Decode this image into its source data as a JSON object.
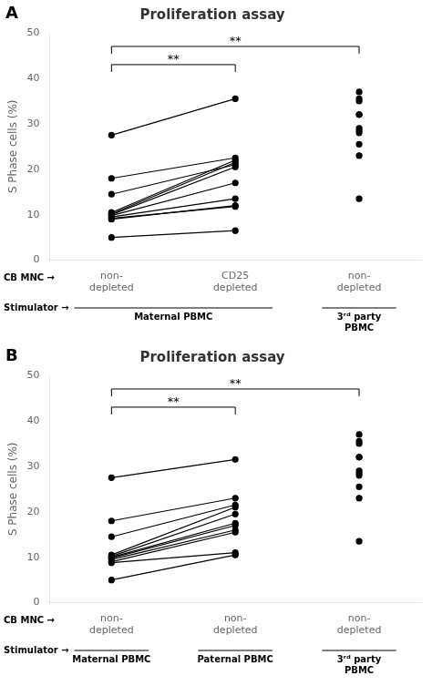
{
  "chart_data": [
    {
      "type": "line",
      "title": "Proliferation assay",
      "panel_label": "A",
      "ylabel": "S Phase cells (%)",
      "categories": [
        "non-\ndepleted",
        "CD25\ndepleted",
        "non-\ndepleted"
      ],
      "color": "#000000",
      "series": [
        {
          "type": "line",
          "marker": "circle",
          "values": [
            27.5,
            35.5,
            null
          ]
        },
        {
          "type": "line",
          "marker": "circle",
          "values": [
            18.0,
            22.5,
            null
          ]
        },
        {
          "type": "line",
          "marker": "circle",
          "values": [
            14.5,
            21.0,
            null
          ]
        },
        {
          "type": "line",
          "marker": "circle",
          "values": [
            10.5,
            22.0,
            null
          ]
        },
        {
          "type": "line",
          "marker": "circle",
          "values": [
            10.2,
            21.5,
            null
          ]
        },
        {
          "type": "line",
          "marker": "circle",
          "values": [
            10.0,
            20.5,
            null
          ]
        },
        {
          "type": "line",
          "marker": "circle",
          "values": [
            9.8,
            17.0,
            null
          ]
        },
        {
          "type": "line",
          "marker": "circle",
          "values": [
            9.5,
            13.5,
            null
          ]
        },
        {
          "type": "line",
          "marker": "circle",
          "values": [
            9.2,
            11.8,
            null
          ]
        },
        {
          "type": "line",
          "marker": "circle",
          "values": [
            9.0,
            12.0,
            null
          ]
        },
        {
          "type": "line",
          "marker": "circle",
          "values": [
            5.0,
            6.5,
            null
          ]
        },
        {
          "type": "scatter",
          "marker": "circle",
          "values": [
            null,
            null,
            37.0
          ]
        },
        {
          "type": "scatter",
          "marker": "circle",
          "values": [
            null,
            null,
            35.5
          ]
        },
        {
          "type": "scatter",
          "marker": "circle",
          "values": [
            null,
            null,
            35.0
          ]
        },
        {
          "type": "scatter",
          "marker": "circle",
          "values": [
            null,
            null,
            32.0
          ]
        },
        {
          "type": "scatter",
          "marker": "circle",
          "values": [
            null,
            null,
            32.0
          ]
        },
        {
          "type": "scatter",
          "marker": "circle",
          "values": [
            null,
            null,
            29.0
          ]
        },
        {
          "type": "scatter",
          "marker": "circle",
          "values": [
            null,
            null,
            28.5
          ]
        },
        {
          "type": "scatter",
          "marker": "circle",
          "values": [
            null,
            null,
            28.0
          ]
        },
        {
          "type": "scatter",
          "marker": "circle",
          "values": [
            null,
            null,
            25.5
          ]
        },
        {
          "type": "scatter",
          "marker": "circle",
          "values": [
            null,
            null,
            23.0
          ]
        },
        {
          "type": "scatter",
          "marker": "circle",
          "values": [
            null,
            null,
            13.5
          ]
        }
      ],
      "ylim": [
        0,
        50
      ],
      "yticks": [
        0,
        10,
        20,
        30,
        40,
        50
      ],
      "grid": false,
      "annotations": [
        {
          "text": "**",
          "y": 43,
          "span": [
            0,
            1
          ]
        },
        {
          "text": "**",
          "y": 47,
          "span": [
            0,
            2
          ]
        }
      ],
      "row_labels": [
        "CB MNC →",
        "Stimulator →"
      ],
      "stimulators": [
        {
          "label": "Maternal PBMC",
          "span": [
            0,
            1
          ]
        },
        {
          "label": "3ʳᵈ party\nPBMC",
          "span": [
            2,
            2
          ]
        }
      ]
    },
    {
      "type": "line",
      "title": "Proliferation assay",
      "panel_label": "B",
      "ylabel": "S Phase cells (%)",
      "categories": [
        "non-\ndepleted",
        "non-\ndepleted",
        "non-\ndepleted"
      ],
      "color": "#000000",
      "series": [
        {
          "type": "line",
          "marker": "circle",
          "values": [
            27.5,
            31.5,
            null
          ]
        },
        {
          "type": "line",
          "marker": "circle",
          "values": [
            18.0,
            23.0,
            null
          ]
        },
        {
          "type": "line",
          "marker": "circle",
          "values": [
            14.5,
            21.5,
            null
          ]
        },
        {
          "type": "line",
          "marker": "circle",
          "values": [
            10.5,
            21.0,
            null
          ]
        },
        {
          "type": "line",
          "marker": "circle",
          "values": [
            10.2,
            19.5,
            null
          ]
        },
        {
          "type": "line",
          "marker": "circle",
          "values": [
            10.0,
            17.5,
            null
          ]
        },
        {
          "type": "line",
          "marker": "circle",
          "values": [
            9.8,
            17.0,
            null
          ]
        },
        {
          "type": "line",
          "marker": "circle",
          "values": [
            9.5,
            16.0,
            null
          ]
        },
        {
          "type": "line",
          "marker": "circle",
          "values": [
            9.0,
            15.5,
            null
          ]
        },
        {
          "type": "line",
          "marker": "circle",
          "values": [
            8.8,
            11.0,
            null
          ]
        },
        {
          "type": "line",
          "marker": "circle",
          "values": [
            5.0,
            10.5,
            null
          ]
        },
        {
          "type": "scatter",
          "marker": "circle",
          "values": [
            null,
            null,
            37.0
          ]
        },
        {
          "type": "scatter",
          "marker": "circle",
          "values": [
            null,
            null,
            35.5
          ]
        },
        {
          "type": "scatter",
          "marker": "circle",
          "values": [
            null,
            null,
            35.0
          ]
        },
        {
          "type": "scatter",
          "marker": "circle",
          "values": [
            null,
            null,
            32.0
          ]
        },
        {
          "type": "scatter",
          "marker": "circle",
          "values": [
            null,
            null,
            32.0
          ]
        },
        {
          "type": "scatter",
          "marker": "circle",
          "values": [
            null,
            null,
            29.0
          ]
        },
        {
          "type": "scatter",
          "marker": "circle",
          "values": [
            null,
            null,
            28.5
          ]
        },
        {
          "type": "scatter",
          "marker": "circle",
          "values": [
            null,
            null,
            28.0
          ]
        },
        {
          "type": "scatter",
          "marker": "circle",
          "values": [
            null,
            null,
            25.5
          ]
        },
        {
          "type": "scatter",
          "marker": "circle",
          "values": [
            null,
            null,
            23.0
          ]
        },
        {
          "type": "scatter",
          "marker": "circle",
          "values": [
            null,
            null,
            13.5
          ]
        }
      ],
      "ylim": [
        0,
        50
      ],
      "yticks": [
        0,
        10,
        20,
        30,
        40,
        50
      ],
      "grid": false,
      "annotations": [
        {
          "text": "**",
          "y": 43,
          "span": [
            0,
            1
          ]
        },
        {
          "text": "**",
          "y": 47,
          "span": [
            0,
            2
          ]
        }
      ],
      "row_labels": [
        "CB MNC →",
        "Stimulator →"
      ],
      "stimulators": [
        {
          "label": "Maternal PBMC",
          "span": [
            0,
            0
          ]
        },
        {
          "label": "Paternal PBMC",
          "span": [
            1,
            1
          ]
        },
        {
          "label": "3ʳᵈ party\nPBMC",
          "span": [
            2,
            2
          ]
        }
      ]
    }
  ]
}
